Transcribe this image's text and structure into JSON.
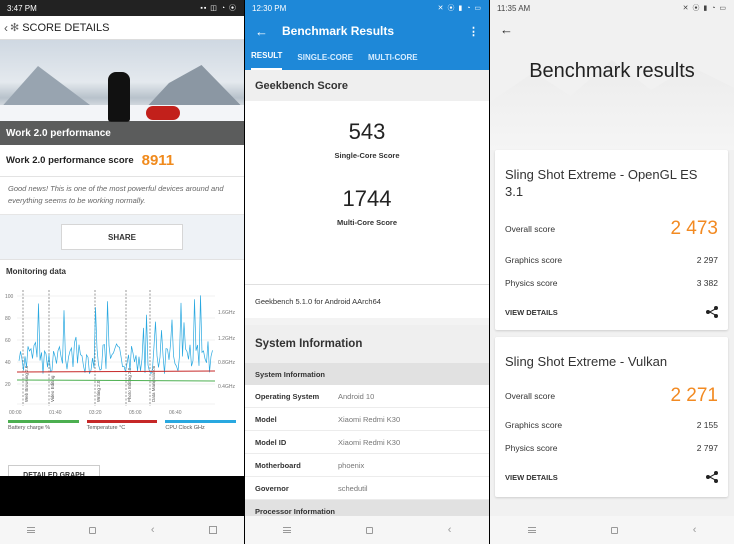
{
  "p1": {
    "status_time": "3:47 PM",
    "header_title": "SCORE DETAILS",
    "hero_caption": "Work 2.0 performance",
    "score_label": "Work 2.0 performance score",
    "score_value": "8911",
    "good_news": "Good news! This is one of the most powerful devices around and everything seems to be working normally.",
    "share_label": "SHARE",
    "monitoring_title": "Monitoring data",
    "y_ticks": [
      "100",
      "80",
      "60",
      "40",
      "20"
    ],
    "right_ticks": [
      "1.6GHz",
      "1.2GHz",
      "0.8GHz",
      "0.4GHz"
    ],
    "x_ticks": [
      "00:00",
      "01:40",
      "03:20",
      "05:00",
      "06:40"
    ],
    "phase_labels": [
      "Web Browsing 2.0",
      "Video Editing",
      "Writing 2.0",
      "Photo Editing 2.0",
      "Data Manipulation"
    ],
    "legend": [
      {
        "label": "Battery charge %",
        "color": "#4caf50"
      },
      {
        "label": "Temperature °C",
        "color": "#c62828"
      },
      {
        "label": "CPU Clock GHz",
        "color": "#29a8e0"
      }
    ],
    "detailed_graph_label": "DETAILED GRAPH"
  },
  "p2": {
    "status_time": "12:30 PM",
    "app_title": "Benchmark Results",
    "tabs": [
      "RESULT",
      "SINGLE-CORE",
      "MULTI-CORE"
    ],
    "section_title": "Geekbench Score",
    "single_score": "543",
    "single_label": "Single-Core Score",
    "multi_score": "1744",
    "multi_label": "Multi-Core Score",
    "version": "Geekbench 5.1.0 for Android AArch64",
    "sysinfo_title": "System Information",
    "sysinfo_subheader": "System Information",
    "rows": [
      {
        "k": "Operating System",
        "v": "Android 10"
      },
      {
        "k": "Model",
        "v": "Xiaomi Redmi K30"
      },
      {
        "k": "Model ID",
        "v": "Xiaomi Redmi K30"
      },
      {
        "k": "Motherboard",
        "v": "phoenix"
      },
      {
        "k": "Governor",
        "v": "schedutil"
      }
    ],
    "processor_header": "Processor Information"
  },
  "p3": {
    "status_time": "11:35 AM",
    "title": "Benchmark results",
    "cards": [
      {
        "title": "Sling Shot Extreme - OpenGL ES 3.1",
        "overall_label": "Overall score",
        "overall_value": "2 473",
        "graphics_label": "Graphics score",
        "graphics_value": "2 297",
        "physics_label": "Physics score",
        "physics_value": "3 382",
        "details_label": "VIEW DETAILS"
      },
      {
        "title": "Sling Shot Extreme - Vulkan",
        "overall_label": "Overall score",
        "overall_value": "2 271",
        "graphics_label": "Graphics score",
        "graphics_value": "2 155",
        "physics_label": "Physics score",
        "physics_value": "2 797",
        "details_label": "VIEW DETAILS"
      }
    ]
  }
}
